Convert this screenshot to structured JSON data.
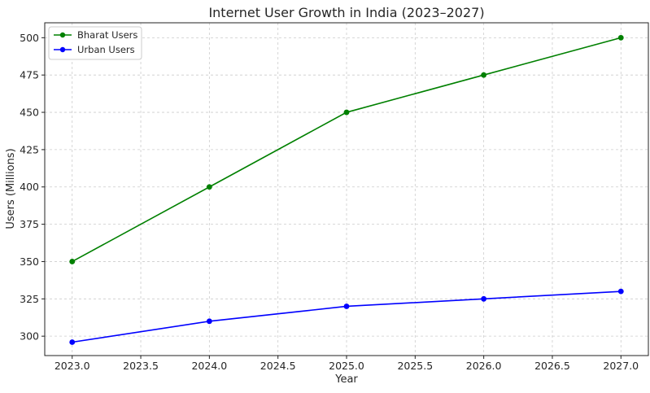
{
  "chart_data": {
    "type": "line",
    "title": "Internet User Growth in India (2023–2027)",
    "xlabel": "Year",
    "ylabel": "Users (Millions)",
    "x": [
      2023,
      2024,
      2025,
      2026,
      2027
    ],
    "xlim": [
      2022.8,
      2027.2
    ],
    "ylim": [
      287,
      510
    ],
    "x_ticks": [
      2023.0,
      2023.5,
      2024.0,
      2024.5,
      2025.0,
      2025.5,
      2026.0,
      2026.5,
      2027.0
    ],
    "x_tick_labels": [
      "2023.0",
      "2023.5",
      "2024.0",
      "2024.5",
      "2025.0",
      "2025.5",
      "2026.0",
      "2026.5",
      "2027.0"
    ],
    "y_ticks": [
      300,
      325,
      350,
      375,
      400,
      425,
      450,
      475,
      500
    ],
    "y_tick_labels": [
      "300",
      "325",
      "350",
      "375",
      "400",
      "425",
      "450",
      "475",
      "500"
    ],
    "grid": true,
    "legend_position": "top-left",
    "series": [
      {
        "name": "Bharat Users",
        "color": "#008000",
        "marker": "circle",
        "values": [
          350,
          400,
          450,
          475,
          500
        ]
      },
      {
        "name": "Urban Users",
        "color": "#0000ff",
        "marker": "circle",
        "values": [
          296,
          310,
          320,
          325,
          330
        ]
      }
    ]
  }
}
